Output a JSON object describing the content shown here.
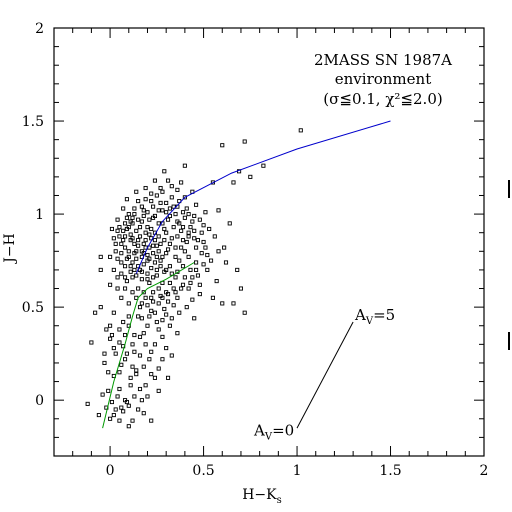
{
  "chart_data": {
    "type": "scatter",
    "title_lines": [
      "2MASS SN 1987A",
      "environment",
      "(σ≦0.1, χ²≦2.0)"
    ],
    "xlabel": "H−K",
    "xlabel_sub": "s",
    "ylabel": "J−H",
    "xlim": [
      -0.3,
      2.0
    ],
    "ylim": [
      -0.3,
      2.0
    ],
    "xticks": [
      0,
      0.5,
      1,
      1.5,
      2
    ],
    "xtick_labels": [
      "0",
      "0.5",
      "1",
      "1.5",
      "2"
    ],
    "yticks": [
      0,
      0.5,
      1,
      1.5,
      2
    ],
    "ytick_labels": [
      "0",
      "0.5",
      "1",
      "1.5",
      "2"
    ],
    "marker": "open-square",
    "colors": {
      "giant_branch": "#0000cc",
      "dwarf_branch": "#009900",
      "ink": "#000000"
    },
    "lines": [
      {
        "name": "giant-sequence",
        "color": "#0000cc",
        "x": [
          0.14,
          0.2,
          0.28,
          0.4,
          0.65,
          1.0,
          1.5
        ],
        "y": [
          0.68,
          0.82,
          0.96,
          1.09,
          1.22,
          1.35,
          1.5
        ]
      },
      {
        "name": "dwarf-sequence",
        "color": "#009900",
        "x": [
          -0.04,
          0.02,
          0.08,
          0.12,
          0.15,
          0.2,
          0.3,
          0.45
        ],
        "y": [
          -0.15,
          0.1,
          0.3,
          0.45,
          0.55,
          0.6,
          0.65,
          0.74
        ]
      },
      {
        "name": "reddening-vector",
        "color": "#000000",
        "x": [
          1.0,
          1.3
        ],
        "y": [
          -0.15,
          0.42
        ]
      }
    ],
    "annotations": [
      {
        "text": "A",
        "sub": "V",
        "suffix": "=0",
        "x": 0.77,
        "y": -0.19
      },
      {
        "text": "A",
        "sub": "V",
        "suffix": "=5",
        "x": 1.31,
        "y": 0.43
      }
    ],
    "points": [
      [
        1.02,
        1.45
      ],
      [
        0.72,
        1.39
      ],
      [
        0.6,
        1.37
      ],
      [
        0.82,
        1.26
      ],
      [
        0.69,
        1.23
      ],
      [
        0.75,
        1.2
      ],
      [
        0.55,
        1.17
      ],
      [
        0.66,
        1.17
      ],
      [
        0.4,
        1.26
      ],
      [
        0.38,
        1.17
      ],
      [
        0.29,
        1.23
      ],
      [
        0.4,
        1.09
      ],
      [
        0.58,
        1.02
      ],
      [
        0.51,
        1.01
      ],
      [
        0.46,
        1.05
      ],
      [
        0.48,
        0.97
      ],
      [
        0.44,
        0.96
      ],
      [
        0.22,
        1.11
      ],
      [
        0.28,
        1.12
      ],
      [
        0.33,
        1.15
      ],
      [
        0.1,
        1.0
      ],
      [
        0.08,
        0.95
      ],
      [
        0.05,
        0.93
      ],
      [
        0.02,
        0.87
      ],
      [
        0.06,
        0.84
      ],
      [
        0.03,
        0.8
      ],
      [
        0.04,
        0.76
      ],
      [
        -0.05,
        0.7
      ],
      [
        -0.05,
        0.77
      ],
      [
        0.55,
        0.55
      ],
      [
        0.48,
        0.57
      ],
      [
        0.44,
        0.54
      ],
      [
        0.44,
        0.66
      ],
      [
        0.46,
        0.74
      ],
      [
        0.52,
        0.78
      ],
      [
        0.6,
        0.52
      ],
      [
        0.41,
        0.85
      ],
      [
        0.42,
        0.9
      ],
      [
        0.38,
        0.82
      ],
      [
        0.45,
        0.87
      ],
      [
        0.39,
        0.72
      ],
      [
        0.35,
        0.66
      ],
      [
        0.34,
        0.6
      ],
      [
        0.3,
        0.58
      ],
      [
        0.28,
        0.63
      ],
      [
        0.38,
        0.6
      ],
      [
        0.42,
        0.6
      ],
      [
        0.3,
        0.7
      ],
      [
        0.22,
        0.55
      ],
      [
        0.18,
        0.58
      ],
      [
        0.15,
        0.6
      ],
      [
        0.2,
        0.65
      ],
      [
        0.26,
        0.52
      ],
      [
        0.34,
        0.51
      ],
      [
        0.36,
        0.55
      ],
      [
        0.25,
        0.42
      ],
      [
        0.2,
        0.4
      ],
      [
        0.32,
        0.4
      ],
      [
        0.28,
        0.34
      ],
      [
        0.24,
        0.3
      ],
      [
        0.36,
        0.36
      ],
      [
        0.3,
        0.46
      ],
      [
        0.15,
        0.45
      ],
      [
        0.18,
        0.36
      ],
      [
        0.1,
        0.4
      ],
      [
        0.08,
        0.35
      ],
      [
        0.05,
        0.31
      ],
      [
        0.02,
        0.28
      ],
      [
        -0.02,
        0.38
      ],
      [
        -0.1,
        0.31
      ],
      [
        -0.08,
        0.47
      ],
      [
        0.02,
        0.47
      ],
      [
        -0.05,
        0.5
      ],
      [
        0.0,
        0.4
      ],
      [
        0.14,
        0.55
      ],
      [
        0.1,
        0.52
      ],
      [
        0.12,
        0.3
      ],
      [
        0.16,
        0.24
      ],
      [
        0.21,
        0.22
      ],
      [
        0.24,
        0.12
      ],
      [
        0.26,
        0.05
      ],
      [
        0.2,
        0.02
      ],
      [
        0.16,
        0.06
      ],
      [
        0.14,
        0.14
      ],
      [
        0.12,
        0.18
      ],
      [
        0.08,
        0.22
      ],
      [
        0.02,
        0.13
      ],
      [
        0.05,
        0.15
      ],
      [
        -0.01,
        0.05
      ],
      [
        0.04,
        0.02
      ],
      [
        -0.04,
        0.03
      ],
      [
        0.03,
        -0.05
      ],
      [
        0.07,
        -0.06
      ],
      [
        0.1,
        -0.03
      ],
      [
        0.15,
        -0.05
      ],
      [
        0.12,
        -0.11
      ],
      [
        0.05,
        -0.11
      ],
      [
        0.0,
        -0.1
      ],
      [
        -0.06,
        -0.08
      ],
      [
        -0.12,
        -0.02
      ],
      [
        0.18,
        -0.07
      ],
      [
        0.22,
        -0.11
      ],
      [
        0.1,
        -0.14
      ],
      [
        0.06,
        -0.04
      ],
      [
        0.02,
        -0.08
      ],
      [
        0.08,
        0.0
      ],
      [
        -0.03,
        0.2
      ],
      [
        -0.03,
        0.25
      ],
      [
        0.0,
        0.33
      ],
      [
        0.13,
        0.35
      ],
      [
        0.17,
        0.44
      ],
      [
        0.22,
        0.48
      ],
      [
        0.28,
        0.55
      ],
      [
        0.31,
        0.53
      ],
      [
        0.11,
        0.72
      ],
      [
        0.06,
        0.68
      ],
      [
        0.09,
        0.64
      ],
      [
        0.04,
        0.6
      ],
      [
        0.0,
        0.62
      ],
      [
        0.12,
        0.66
      ],
      [
        0.16,
        0.7
      ],
      [
        0.09,
        0.76
      ],
      [
        0.13,
        0.79
      ],
      [
        0.11,
        0.86
      ],
      [
        0.08,
        0.88
      ],
      [
        0.16,
        0.93
      ],
      [
        0.12,
        0.98
      ],
      [
        0.18,
        1.02
      ],
      [
        0.23,
        1.04
      ],
      [
        0.28,
        1.02
      ],
      [
        0.34,
        1.04
      ],
      [
        0.37,
        1.07
      ],
      [
        0.31,
        0.97
      ],
      [
        0.26,
        0.95
      ],
      [
        0.21,
        0.97
      ],
      [
        0.24,
        0.9
      ],
      [
        0.3,
        0.9
      ],
      [
        0.34,
        0.93
      ],
      [
        0.27,
        0.84
      ],
      [
        0.23,
        0.83
      ],
      [
        0.19,
        0.86
      ],
      [
        0.15,
        0.83
      ],
      [
        0.2,
        0.78
      ],
      [
        0.25,
        0.77
      ],
      [
        0.3,
        0.79
      ],
      [
        0.35,
        0.77
      ],
      [
        0.32,
        0.84
      ],
      [
        0.18,
        0.73
      ],
      [
        0.22,
        0.71
      ],
      [
        0.27,
        0.72
      ],
      [
        0.32,
        0.72
      ],
      [
        0.14,
        0.76
      ],
      [
        0.17,
        0.8
      ],
      [
        0.21,
        0.82
      ],
      [
        0.19,
        0.9
      ],
      [
        0.16,
        0.88
      ],
      [
        0.14,
        0.91
      ],
      [
        0.26,
        0.88
      ],
      [
        0.29,
        0.86
      ],
      [
        0.22,
        0.87
      ],
      [
        0.17,
        0.96
      ],
      [
        0.2,
        0.93
      ],
      [
        0.24,
        0.99
      ],
      [
        0.28,
        0.95
      ],
      [
        0.32,
        0.99
      ],
      [
        0.36,
        0.96
      ],
      [
        0.4,
        0.98
      ],
      [
        0.38,
        0.91
      ],
      [
        0.36,
        0.88
      ],
      [
        0.4,
        0.8
      ],
      [
        0.37,
        0.75
      ],
      [
        0.33,
        0.68
      ],
      [
        0.25,
        0.67
      ],
      [
        0.21,
        0.63
      ],
      [
        0.17,
        0.65
      ],
      [
        0.13,
        0.7
      ],
      [
        0.1,
        0.8
      ],
      [
        0.08,
        0.82
      ],
      [
        0.05,
        0.88
      ],
      [
        0.07,
        0.91
      ],
      [
        0.1,
        0.93
      ],
      [
        0.13,
        1.03
      ],
      [
        0.15,
        1.07
      ],
      [
        0.19,
        1.08
      ],
      [
        0.25,
        1.1
      ],
      [
        0.3,
        1.06
      ],
      [
        0.33,
        1.09
      ],
      [
        0.27,
        1.14
      ],
      [
        0.2,
        0.75
      ],
      [
        0.23,
        0.79
      ],
      [
        0.18,
        0.84
      ],
      [
        0.24,
        0.86
      ],
      [
        0.21,
        0.89
      ],
      [
        0.19,
        0.82
      ],
      [
        0.22,
        0.92
      ],
      [
        0.25,
        0.83
      ],
      [
        0.17,
        0.77
      ],
      [
        0.26,
        0.8
      ],
      [
        0.28,
        0.77
      ],
      [
        0.15,
        0.72
      ],
      [
        0.12,
        0.74
      ],
      [
        0.31,
        0.81
      ],
      [
        0.33,
        0.87
      ],
      [
        0.29,
        0.92
      ],
      [
        0.35,
        0.82
      ],
      [
        0.39,
        0.86
      ],
      [
        0.42,
        0.77
      ],
      [
        0.43,
        0.7
      ],
      [
        0.47,
        0.67
      ],
      [
        0.5,
        0.85
      ],
      [
        0.53,
        0.92
      ],
      [
        0.56,
        0.88
      ],
      [
        0.5,
        0.94
      ],
      [
        0.45,
        0.99
      ],
      [
        0.41,
        1.03
      ],
      [
        0.44,
        1.12
      ],
      [
        0.36,
        1.13
      ],
      [
        0.31,
        1.18
      ],
      [
        0.24,
        1.18
      ],
      [
        0.19,
        1.14
      ],
      [
        0.14,
        1.12
      ],
      [
        0.09,
        1.08
      ],
      [
        0.07,
        1.03
      ],
      [
        0.04,
        0.97
      ],
      [
        0.01,
        0.92
      ],
      [
        0.03,
        0.84
      ],
      [
        0.0,
        0.77
      ],
      [
        0.06,
        0.74
      ],
      [
        0.02,
        0.7
      ],
      [
        0.04,
        0.66
      ],
      [
        0.08,
        0.6
      ],
      [
        0.12,
        0.58
      ],
      [
        0.06,
        0.55
      ],
      [
        0.26,
        0.6
      ],
      [
        0.23,
        0.58
      ],
      [
        0.19,
        0.55
      ],
      [
        0.16,
        0.5
      ],
      [
        0.24,
        0.47
      ],
      [
        0.32,
        0.63
      ],
      [
        0.36,
        0.69
      ],
      [
        0.4,
        0.66
      ],
      [
        0.48,
        0.62
      ],
      [
        0.52,
        0.7
      ],
      [
        0.57,
        0.64
      ],
      [
        0.46,
        0.82
      ],
      [
        0.49,
        0.9
      ],
      [
        0.43,
        0.93
      ],
      [
        0.39,
        0.93
      ],
      [
        0.35,
        1.0
      ],
      [
        0.3,
        1.01
      ],
      [
        0.27,
        1.06
      ],
      [
        0.22,
        1.07
      ],
      [
        0.18,
        0.99
      ],
      [
        0.15,
        0.97
      ],
      [
        0.12,
        0.95
      ],
      [
        0.09,
        0.98
      ],
      [
        0.11,
        0.89
      ],
      [
        0.13,
        0.84
      ],
      [
        0.14,
        0.8
      ],
      [
        0.1,
        0.77
      ],
      [
        0.08,
        0.72
      ],
      [
        0.06,
        0.79
      ],
      [
        0.07,
        0.86
      ],
      [
        0.04,
        0.91
      ],
      [
        0.29,
        0.49
      ],
      [
        0.26,
        0.38
      ],
      [
        0.3,
        0.28
      ],
      [
        0.19,
        0.3
      ],
      [
        0.16,
        0.34
      ],
      [
        0.22,
        0.26
      ],
      [
        0.28,
        0.22
      ],
      [
        0.33,
        0.24
      ],
      [
        0.18,
        0.18
      ],
      [
        0.22,
        0.14
      ],
      [
        0.26,
        0.17
      ],
      [
        0.31,
        0.12
      ],
      [
        0.19,
        0.08
      ],
      [
        0.11,
        0.08
      ],
      [
        0.13,
        0.02
      ],
      [
        0.09,
        -0.01
      ],
      [
        0.17,
        0.0
      ],
      [
        0.01,
        -0.01
      ],
      [
        -0.02,
        -0.04
      ],
      [
        0.05,
        0.06
      ],
      [
        0.11,
        0.12
      ],
      [
        0.14,
        0.16
      ],
      [
        0.06,
        0.19
      ],
      [
        0.09,
        0.25
      ],
      [
        0.13,
        0.26
      ],
      [
        0.07,
        0.29
      ],
      [
        0.03,
        0.25
      ],
      [
        -0.01,
        0.15
      ],
      [
        0.01,
        0.35
      ],
      [
        0.05,
        0.38
      ],
      [
        0.1,
        0.45
      ],
      [
        0.07,
        0.42
      ],
      [
        0.41,
        0.5
      ],
      [
        0.37,
        0.47
      ],
      [
        0.33,
        0.44
      ],
      [
        0.45,
        0.44
      ],
      [
        0.28,
        0.43
      ],
      [
        0.21,
        0.45
      ],
      [
        0.17,
        0.52
      ],
      [
        0.2,
        0.51
      ],
      [
        0.23,
        0.53
      ],
      [
        0.27,
        0.56
      ],
      [
        0.31,
        0.57
      ],
      [
        0.35,
        0.58
      ],
      [
        0.39,
        0.62
      ],
      [
        0.43,
        0.63
      ],
      [
        0.46,
        0.7
      ],
      [
        0.5,
        0.73
      ],
      [
        0.54,
        0.75
      ],
      [
        0.49,
        0.79
      ],
      [
        0.51,
        0.82
      ],
      [
        0.47,
        0.86
      ],
      [
        0.45,
        0.91
      ],
      [
        0.42,
        0.88
      ],
      [
        0.37,
        0.95
      ],
      [
        0.39,
        1.01
      ],
      [
        0.42,
        1.0
      ],
      [
        0.36,
        1.04
      ],
      [
        0.32,
        1.03
      ],
      [
        0.26,
        1.02
      ],
      [
        0.23,
        0.98
      ],
      [
        0.2,
        1.01
      ],
      [
        0.17,
        1.04
      ],
      [
        0.13,
        1.0
      ],
      [
        0.11,
        0.96
      ],
      [
        0.09,
        0.92
      ],
      [
        0.12,
        0.87
      ],
      [
        0.15,
        0.86
      ],
      [
        0.18,
        0.79
      ],
      [
        0.21,
        0.76
      ],
      [
        0.24,
        0.74
      ],
      [
        0.27,
        0.75
      ],
      [
        0.29,
        0.69
      ],
      [
        0.25,
        0.7
      ],
      [
        0.23,
        0.66
      ],
      [
        0.2,
        0.68
      ],
      [
        0.17,
        0.69
      ],
      [
        0.14,
        0.67
      ],
      [
        0.11,
        0.69
      ],
      [
        0.08,
        0.66
      ],
      [
        0.64,
        0.95
      ],
      [
        0.61,
        0.82
      ],
      [
        0.68,
        0.7
      ],
      [
        0.62,
        0.74
      ],
      [
        0.58,
        0.8
      ],
      [
        0.7,
        0.6
      ],
      [
        0.66,
        0.52
      ],
      [
        0.72,
        0.47
      ]
    ]
  }
}
